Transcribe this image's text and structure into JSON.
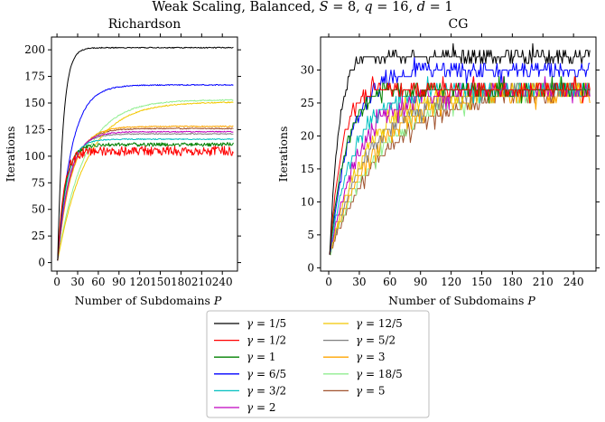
{
  "figure": {
    "suptitle": "Weak Scaling, Balanced, S = 8, q = 16, d = 1"
  },
  "chart_data": [
    {
      "type": "line",
      "title": "Richardson",
      "xlabel": "Number of Subdomains P",
      "ylabel": "Iterations",
      "xlim": [
        -8,
        262
      ],
      "ylim": [
        -8,
        212
      ],
      "xticks": [
        0,
        30,
        60,
        90,
        120,
        150,
        180,
        210,
        240
      ],
      "yticks": [
        0,
        25,
        50,
        75,
        100,
        125,
        150,
        175,
        200
      ],
      "noise": "fluctuating",
      "series": [
        {
          "name": "γ = 1/5",
          "color": "#000000",
          "start": 2,
          "plateau": 202,
          "rate": 8
        },
        {
          "name": "γ = 1/2",
          "color": "#ff0000",
          "start": 2,
          "plateau": 105,
          "rate": 9,
          "noise": 4.5
        },
        {
          "name": "γ = 1",
          "color": "#008000",
          "start": 2,
          "plateau": 111,
          "rate": 11,
          "noise": 1.8
        },
        {
          "name": "γ = 6/5",
          "color": "#0000ff",
          "start": 2,
          "plateau": 167,
          "rate": 20
        },
        {
          "name": "γ = 3/2",
          "color": "#00bfbf",
          "start": 2,
          "plateau": 116,
          "rate": 13
        },
        {
          "name": "γ = 2",
          "color": "#bf00bf",
          "start": 2,
          "plateau": 123,
          "rate": 17
        },
        {
          "name": "γ = 12/5",
          "color": "#f2c800",
          "start": 2,
          "plateau": 151,
          "rate": 42
        },
        {
          "name": "γ = 5/2",
          "color": "#808080",
          "start": 2,
          "plateau": 121,
          "rate": 16
        },
        {
          "name": "γ = 3",
          "color": "#ffa500",
          "start": 2,
          "plateau": 128,
          "rate": 20
        },
        {
          "name": "γ = 18/5",
          "color": "#90ee90",
          "start": 2,
          "plateau": 153,
          "rate": 38
        },
        {
          "name": "γ = 5",
          "color": "#a0522d",
          "start": 2,
          "plateau": 126,
          "rate": 19
        }
      ]
    },
    {
      "type": "line",
      "title": "CG",
      "xlabel": "Number of Subdomains P",
      "ylabel": "Iterations",
      "xlim": [
        -8,
        262
      ],
      "ylim": [
        -0.5,
        35
      ],
      "xticks": [
        0,
        30,
        60,
        90,
        120,
        150,
        180,
        210,
        240
      ],
      "yticks": [
        0,
        5,
        10,
        15,
        20,
        25,
        30
      ],
      "noise": "stepped",
      "series": [
        {
          "name": "γ = 1/5",
          "color": "#000000",
          "start": 2,
          "plateau": 32.5,
          "rate": 9
        },
        {
          "name": "γ = 1/2",
          "color": "#ff0000",
          "start": 2,
          "plateau": 27.5,
          "rate": 12
        },
        {
          "name": "γ = 1",
          "color": "#008000",
          "start": 2,
          "plateau": 27.5,
          "rate": 16
        },
        {
          "name": "γ = 6/5",
          "color": "#0000ff",
          "start": 2,
          "plateau": 30,
          "rate": 20
        },
        {
          "name": "γ = 3/2",
          "color": "#00bfbf",
          "start": 2,
          "plateau": 27,
          "rate": 24
        },
        {
          "name": "γ = 2",
          "color": "#bf00bf",
          "start": 2,
          "plateau": 27,
          "rate": 30
        },
        {
          "name": "γ = 12/5",
          "color": "#f2c800",
          "start": 2,
          "plateau": 27,
          "rate": 36
        },
        {
          "name": "γ = 5/2",
          "color": "#808080",
          "start": 2,
          "plateau": 27,
          "rate": 40
        },
        {
          "name": "γ = 3",
          "color": "#ffa500",
          "start": 2,
          "plateau": 26.5,
          "rate": 44
        },
        {
          "name": "γ = 18/5",
          "color": "#90ee90",
          "start": 2,
          "plateau": 27,
          "rate": 50
        },
        {
          "name": "γ = 5",
          "color": "#a0522d",
          "start": 2,
          "plateau": 27,
          "rate": 56
        }
      ]
    }
  ]
}
